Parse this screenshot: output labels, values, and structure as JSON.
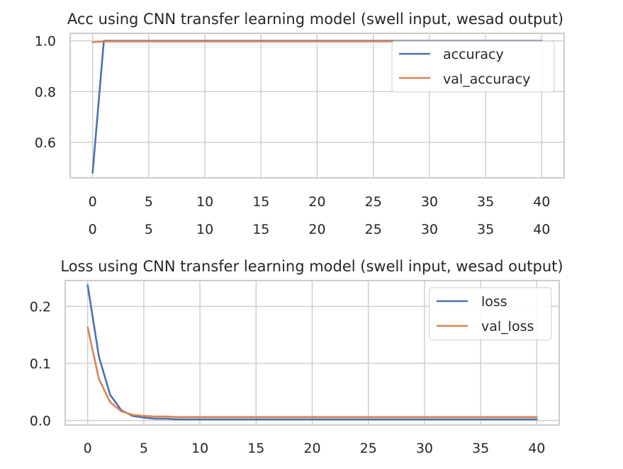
{
  "chart_data": [
    {
      "type": "line",
      "title": "Acc using CNN transfer learning model (swell input, wesad output)",
      "xlabel": "",
      "ylabel": "",
      "xlim": [
        -2,
        42
      ],
      "ylim": [
        0.46,
        1.03
      ],
      "xticks": [
        0,
        5,
        10,
        15,
        20,
        25,
        30,
        35,
        40
      ],
      "xtick_labels": [
        "0",
        "5",
        "10",
        "15",
        "20",
        "25",
        "30",
        "35",
        "40"
      ],
      "secondary_xtick_labels": [
        "0",
        "5",
        "10",
        "15",
        "20",
        "25",
        "30",
        "35",
        "40"
      ],
      "yticks": [
        0.6,
        0.8,
        1.0
      ],
      "ytick_labels": [
        "0.6",
        "0.8",
        "1.0"
      ],
      "grid": true,
      "legend_position": "top-right",
      "series": [
        {
          "name": "accuracy",
          "color": "#4c72b0",
          "x": [
            0,
            1,
            2,
            3,
            4,
            5,
            6,
            7,
            8,
            9,
            10,
            11,
            12,
            13,
            14,
            15,
            16,
            17,
            18,
            19,
            20,
            21,
            22,
            23,
            24,
            25,
            26,
            27,
            28,
            29,
            30,
            31,
            32,
            33,
            34,
            35,
            36,
            37,
            38,
            39,
            40
          ],
          "values": [
            0.48,
            1.0,
            1.0,
            1.0,
            1.0,
            1.0,
            1.0,
            1.0,
            1.0,
            1.0,
            1.0,
            1.0,
            1.0,
            1.0,
            1.0,
            1.0,
            1.0,
            1.0,
            1.0,
            1.0,
            1.0,
            1.0,
            1.0,
            1.0,
            1.0,
            1.0,
            1.0,
            1.0,
            1.0,
            1.0,
            1.0,
            1.0,
            1.0,
            1.0,
            1.0,
            1.0,
            1.0,
            1.0,
            1.0,
            1.0,
            1.0
          ]
        },
        {
          "name": "val_accuracy",
          "color": "#dd8452",
          "x": [
            0,
            1,
            2,
            3,
            4,
            5,
            6,
            7,
            8,
            9,
            10,
            11,
            12,
            13,
            14,
            15,
            16,
            17,
            18,
            19,
            20,
            21,
            22,
            23,
            24,
            25,
            26,
            27,
            28,
            29,
            30,
            31,
            32,
            33,
            34,
            35,
            36,
            37,
            38,
            39,
            40
          ],
          "values": [
            0.995,
            0.998,
            0.998,
            0.998,
            0.998,
            0.998,
            0.998,
            0.998,
            0.998,
            0.998,
            0.998,
            0.998,
            0.998,
            0.998,
            0.998,
            0.998,
            0.998,
            0.998,
            0.998,
            0.998,
            0.998,
            0.998,
            0.998,
            0.998,
            0.998,
            0.998,
            0.998,
            0.998,
            0.998,
            0.998,
            0.998,
            0.998,
            0.998,
            0.998,
            0.998,
            0.998,
            0.998,
            0.998,
            0.998,
            0.998,
            0.998
          ]
        }
      ]
    },
    {
      "type": "line",
      "title": "Loss using CNN transfer learning model (swell input, wesad output)",
      "xlabel": "",
      "ylabel": "",
      "xlim": [
        -2,
        42
      ],
      "ylim": [
        -0.008,
        0.245
      ],
      "xticks": [
        0,
        5,
        10,
        15,
        20,
        25,
        30,
        35,
        40
      ],
      "xtick_labels": [
        "0",
        "5",
        "10",
        "15",
        "20",
        "25",
        "30",
        "35",
        "40"
      ],
      "yticks": [
        0.0,
        0.1,
        0.2
      ],
      "ytick_labels": [
        "0.0",
        "0.1",
        "0.2"
      ],
      "grid": true,
      "legend_position": "top-right",
      "series": [
        {
          "name": "loss",
          "color": "#4c72b0",
          "x": [
            0,
            1,
            2,
            3,
            4,
            5,
            6,
            7,
            8,
            9,
            10,
            11,
            12,
            13,
            14,
            15,
            16,
            17,
            18,
            19,
            20,
            21,
            22,
            23,
            24,
            25,
            26,
            27,
            28,
            29,
            30,
            31,
            32,
            33,
            34,
            35,
            36,
            37,
            38,
            39,
            40
          ],
          "values": [
            0.237,
            0.112,
            0.045,
            0.018,
            0.008,
            0.005,
            0.003,
            0.003,
            0.002,
            0.002,
            0.002,
            0.002,
            0.002,
            0.002,
            0.002,
            0.002,
            0.002,
            0.002,
            0.002,
            0.002,
            0.002,
            0.002,
            0.002,
            0.002,
            0.002,
            0.002,
            0.002,
            0.002,
            0.002,
            0.002,
            0.002,
            0.002,
            0.002,
            0.002,
            0.002,
            0.002,
            0.002,
            0.002,
            0.002,
            0.002,
            0.002
          ]
        },
        {
          "name": "val_loss",
          "color": "#dd8452",
          "x": [
            0,
            1,
            2,
            3,
            4,
            5,
            6,
            7,
            8,
            9,
            10,
            11,
            12,
            13,
            14,
            15,
            16,
            17,
            18,
            19,
            20,
            21,
            22,
            23,
            24,
            25,
            26,
            27,
            28,
            29,
            30,
            31,
            32,
            33,
            34,
            35,
            36,
            37,
            38,
            39,
            40
          ],
          "values": [
            0.163,
            0.073,
            0.032,
            0.016,
            0.01,
            0.008,
            0.007,
            0.007,
            0.006,
            0.006,
            0.006,
            0.006,
            0.006,
            0.006,
            0.006,
            0.006,
            0.006,
            0.006,
            0.006,
            0.006,
            0.006,
            0.006,
            0.006,
            0.006,
            0.006,
            0.006,
            0.006,
            0.006,
            0.006,
            0.006,
            0.006,
            0.006,
            0.006,
            0.006,
            0.006,
            0.006,
            0.006,
            0.006,
            0.006,
            0.006,
            0.006
          ]
        }
      ]
    }
  ]
}
